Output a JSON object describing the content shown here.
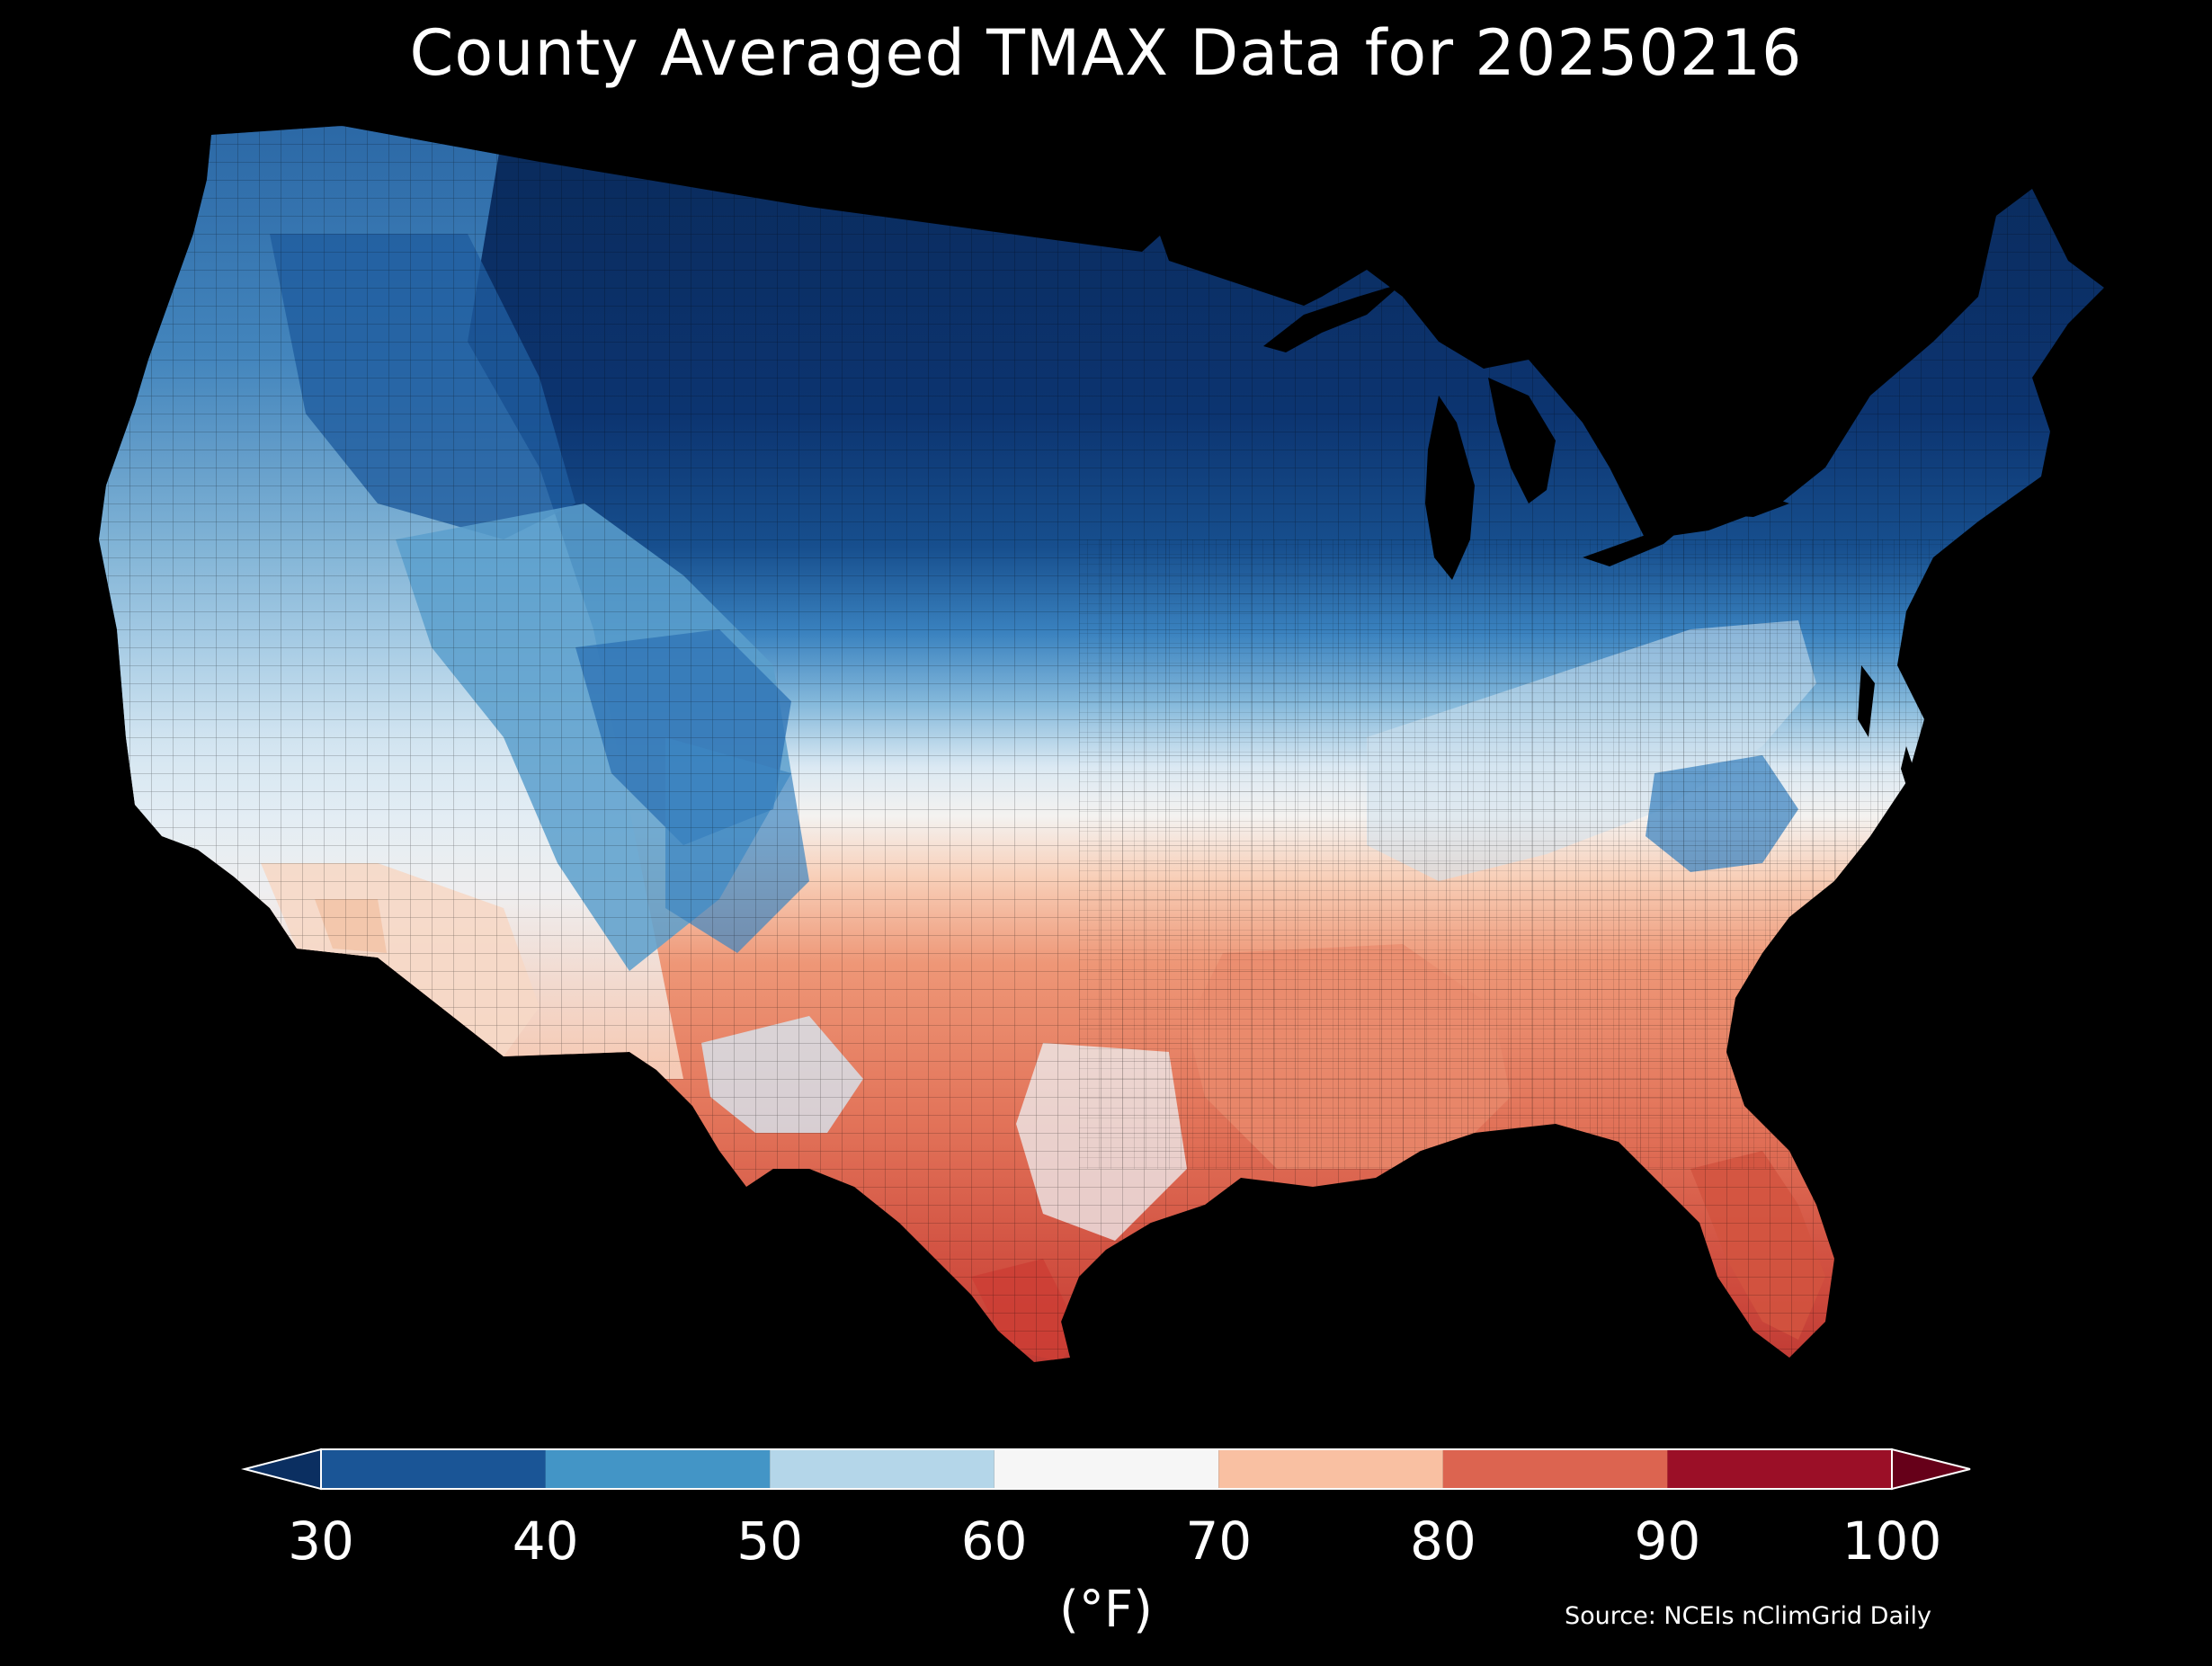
{
  "title": "County Averaged TMAX Data for 20250216",
  "colorbar": {
    "unit_label": "(°F)",
    "ticks": [
      "30",
      "40",
      "50",
      "60",
      "70",
      "80",
      "90",
      "100"
    ],
    "bins": [
      {
        "range": [
          30,
          40
        ],
        "color": "#1a5596"
      },
      {
        "range": [
          40,
          50
        ],
        "color": "#4395c6"
      },
      {
        "range": [
          50,
          60
        ],
        "color": "#b4d6e9"
      },
      {
        "range": [
          60,
          70
        ],
        "color": "#f6f6f6"
      },
      {
        "range": [
          70,
          80
        ],
        "color": "#f9c0a2"
      },
      {
        "range": [
          80,
          90
        ],
        "color": "#dc6450"
      },
      {
        "range": [
          90,
          100
        ],
        "color": "#9b0f27"
      }
    ],
    "under_color": "#0b2f61",
    "over_color": "#660019"
  },
  "source": "Source: NCEIs nClimGrid Daily",
  "colors": {
    "background": "#000000",
    "ocean": "#000000",
    "county_border": "#000000"
  }
}
